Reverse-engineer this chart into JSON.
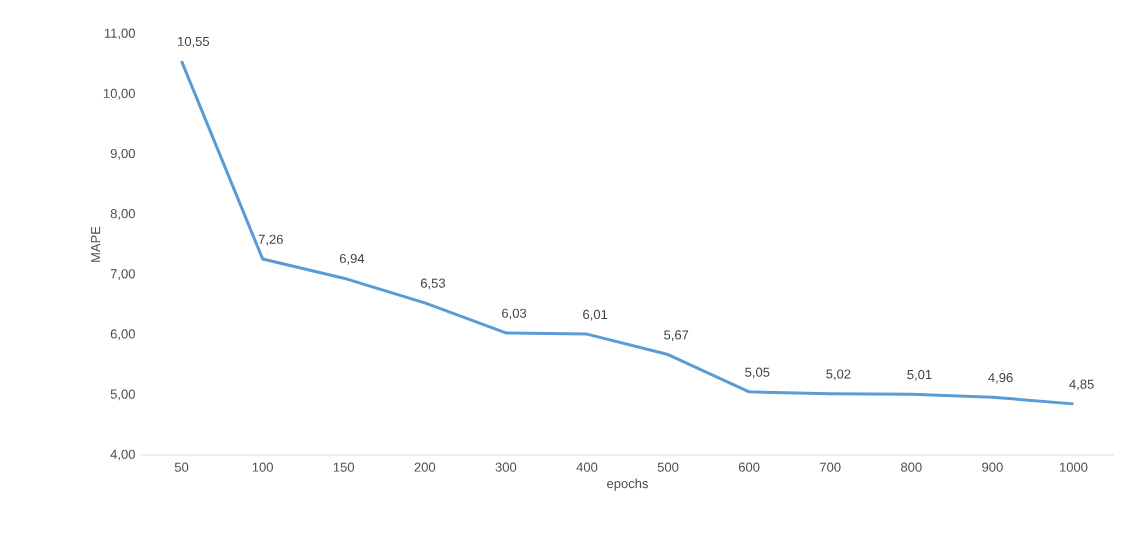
{
  "chart_data": {
    "type": "line",
    "xlabel": "epochs",
    "ylabel": "MAPE",
    "categories": [
      "50",
      "100",
      "150",
      "200",
      "300",
      "400",
      "500",
      "600",
      "700",
      "800",
      "900",
      "1000"
    ],
    "values": [
      10.55,
      7.26,
      6.94,
      6.53,
      6.03,
      6.01,
      5.67,
      5.05,
      5.02,
      5.01,
      4.96,
      4.85
    ],
    "value_labels": [
      "10,55",
      "7,26",
      "6,94",
      "6,53",
      "6,03",
      "6,01",
      "5,67",
      "5,05",
      "5,02",
      "5,01",
      "4,96",
      "4,85"
    ],
    "color": "#5b9bd5",
    "ylim": [
      4,
      11
    ],
    "yticks": [
      {
        "value": 4,
        "label": "4,00"
      },
      {
        "value": 5,
        "label": "5,00"
      },
      {
        "value": 6,
        "label": "6,00"
      },
      {
        "value": 7,
        "label": "7,00"
      },
      {
        "value": 8,
        "label": "8,00"
      },
      {
        "value": 9,
        "label": "9,00"
      },
      {
        "value": 10,
        "label": "10,00"
      },
      {
        "value": 11,
        "label": "11,00"
      }
    ],
    "marker": "none",
    "line_style": "solid"
  }
}
